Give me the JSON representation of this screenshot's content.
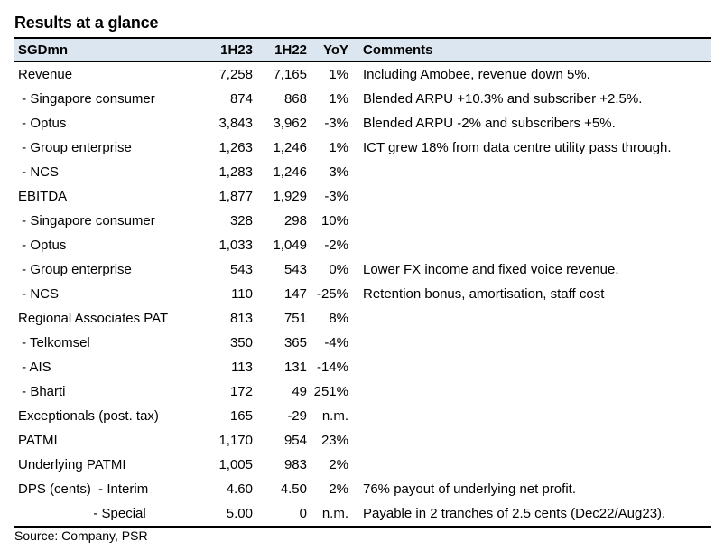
{
  "title": "Results at a glance",
  "header": {
    "label": "SGDmn",
    "h23": "1H23",
    "h22": "1H22",
    "yoy": "YoY",
    "comments": "Comments"
  },
  "rows": [
    {
      "label": "Revenue",
      "h23": "7,258",
      "h22": "7,165",
      "yoy": "1%",
      "comment": "Including Amobee, revenue down 5%."
    },
    {
      "label": " - Singapore consumer",
      "h23": "874",
      "h22": "868",
      "yoy": "1%",
      "comment": "Blended ARPU +10.3% and subscriber +2.5%."
    },
    {
      "label": " - Optus",
      "h23": "3,843",
      "h22": "3,962",
      "yoy": "-3%",
      "comment": "Blended ARPU -2% and subscribers +5%."
    },
    {
      "label": " - Group enterprise",
      "h23": "1,263",
      "h22": "1,246",
      "yoy": "1%",
      "comment": "ICT grew 18% from data centre utility pass through."
    },
    {
      "label": " - NCS",
      "h23": "1,283",
      "h22": "1,246",
      "yoy": "3%",
      "comment": ""
    },
    {
      "label": "EBITDA",
      "h23": "1,877",
      "h22": "1,929",
      "yoy": "-3%",
      "comment": ""
    },
    {
      "label": " - Singapore consumer",
      "h23": "328",
      "h22": "298",
      "yoy": "10%",
      "comment": ""
    },
    {
      "label": " - Optus",
      "h23": "1,033",
      "h22": "1,049",
      "yoy": "-2%",
      "comment": ""
    },
    {
      "label": " - Group enterprise",
      "h23": "543",
      "h22": "543",
      "yoy": "0%",
      "comment": "Lower FX income and fixed voice revenue."
    },
    {
      "label": " - NCS",
      "h23": "110",
      "h22": "147",
      "yoy": "-25%",
      "comment": "Retention bonus, amortisation, staff cost"
    },
    {
      "label": "Regional Associates PAT",
      "h23": "813",
      "h22": "751",
      "yoy": "8%",
      "comment": ""
    },
    {
      "label": " - Telkomsel",
      "h23": "350",
      "h22": "365",
      "yoy": "-4%",
      "comment": ""
    },
    {
      "label": " - AIS",
      "h23": "113",
      "h22": "131",
      "yoy": "-14%",
      "comment": ""
    },
    {
      "label": " - Bharti",
      "h23": "172",
      "h22": "49",
      "yoy": "251%",
      "comment": ""
    },
    {
      "label": "Exceptionals (post. tax)",
      "h23": "165",
      "h22": "-29",
      "yoy": "n.m.",
      "comment": ""
    },
    {
      "label": "PATMI",
      "h23": "1,170",
      "h22": "954",
      "yoy": "23%",
      "comment": ""
    },
    {
      "label": "Underlying PATMI",
      "h23": "1,005",
      "h22": "983",
      "yoy": "2%",
      "comment": ""
    },
    {
      "label": "DPS (cents)  - Interim",
      "h23": "4.60",
      "h22": "4.50",
      "yoy": "2%",
      "comment": "76% payout of underlying net profit."
    },
    {
      "label": "                    - Special",
      "h23": "5.00",
      "h22": "0",
      "yoy": "n.m.",
      "comment": "Payable in 2 tranches of 2.5 cents (Dec22/Aug23)."
    }
  ],
  "source": "Source: Company, PSR"
}
